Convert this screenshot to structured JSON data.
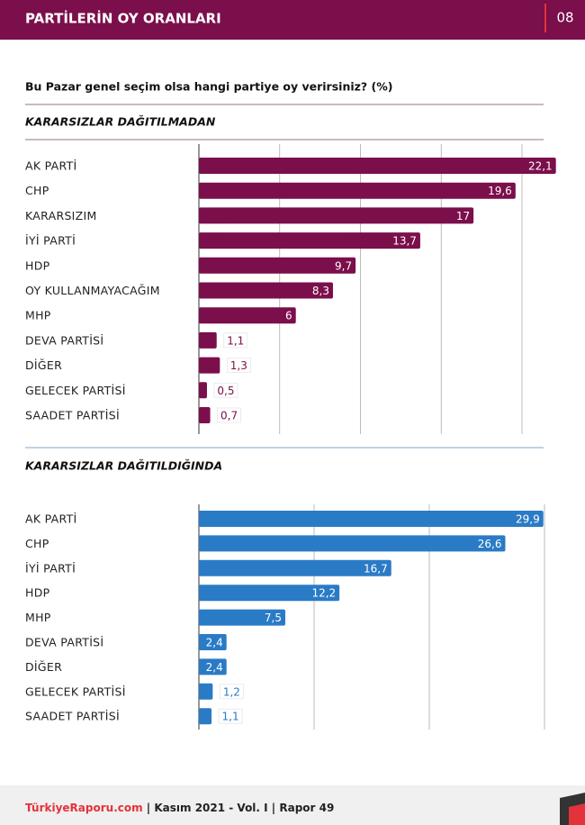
{
  "header": {
    "title": "PARTİLERİN OY ORANLARI",
    "page": "08"
  },
  "question": "Bu Pazar genel seçim olsa hangi partiye oy verirsiniz? (%)",
  "chart_data": [
    {
      "type": "bar",
      "orientation": "horizontal",
      "title": "KARARSIZLAR DAĞITILMADAN",
      "categories": [
        "AK PARTİ",
        "CHP",
        "KARARSIZIM",
        "İYİ PARTİ",
        "HDP",
        "OY KULLANMAYACAĞIM",
        "MHP",
        "DEVA PARTİSİ",
        "DİĞER",
        "GELECEK PARTİSİ",
        "SAADET PARTİSİ"
      ],
      "values": [
        22.1,
        19.6,
        17,
        13.7,
        9.7,
        8.3,
        6,
        1.1,
        1.3,
        0.5,
        0.7
      ],
      "value_labels": [
        "22,1",
        "19,6",
        "17",
        "13,7",
        "9,7",
        "8,3",
        "6",
        "1,1",
        "1,3",
        "0,5",
        "0,7"
      ],
      "color": "#7b0f4b",
      "xlim": [
        0,
        20
      ],
      "gridlines": [
        0,
        5,
        10,
        15,
        20
      ]
    },
    {
      "type": "bar",
      "orientation": "horizontal",
      "title": "KARARSIZLAR DAĞITILDIĞINDA",
      "categories": [
        "AK PARTİ",
        "CHP",
        "İYİ PARTİ",
        "HDP",
        "MHP",
        "DEVA PARTİSİ",
        "DİĞER",
        "GELECEK PARTİSİ",
        "SAADET PARTİSİ"
      ],
      "values": [
        29.9,
        26.6,
        16.7,
        12.2,
        7.5,
        2.4,
        2.4,
        1.2,
        1.1
      ],
      "value_labels": [
        "29,9",
        "26,6",
        "16,7",
        "12,2",
        "7,5",
        "2,4",
        "2,4",
        "1,2",
        "1,1"
      ],
      "color": "#2a7bc6",
      "xlim": [
        0,
        30
      ],
      "gridlines": [
        0,
        10,
        20,
        30
      ]
    }
  ],
  "footer": {
    "brand": "TürkiyeRaporu.com",
    "issue": " | Kasım 2021 - Vol. I | Rapor 49"
  }
}
